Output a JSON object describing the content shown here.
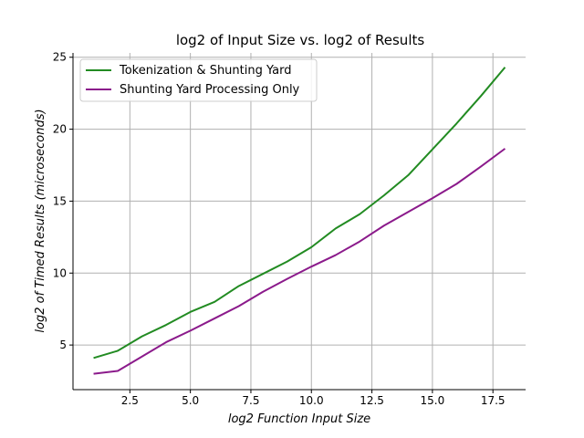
{
  "chart_data": {
    "type": "line",
    "title": "log2 of Input Size vs. log2 of Results",
    "xlabel": "log2 Function Input Size",
    "ylabel": "log2 of Timed Results (microseconds)",
    "xlim": [
      0.15,
      18.85
    ],
    "ylim": [
      1.9,
      25.3
    ],
    "xticks": [
      2.5,
      5.0,
      7.5,
      10.0,
      12.5,
      15.0,
      17.5
    ],
    "xtick_labels": [
      "2.5",
      "5.0",
      "7.5",
      "10.0",
      "12.5",
      "15.0",
      "17.5"
    ],
    "yticks": [
      5,
      10,
      15,
      20,
      25
    ],
    "ytick_labels": [
      "5",
      "10",
      "15",
      "20",
      "25"
    ],
    "grid": true,
    "legend_position": "top-left",
    "x": [
      1,
      2,
      3,
      4,
      5,
      6,
      7,
      8,
      9,
      10,
      11,
      12,
      13,
      14,
      15,
      16,
      17,
      18
    ],
    "series": [
      {
        "name": "Tokenization & Shunting Yard",
        "color": "#228b22",
        "values": [
          4.1,
          4.6,
          5.6,
          6.4,
          7.3,
          8.0,
          9.1,
          9.95,
          10.8,
          11.8,
          13.1,
          14.1,
          15.4,
          16.8,
          18.6,
          20.4,
          22.3,
          24.3
        ]
      },
      {
        "name": "Shunting Yard Processing Only",
        "color": "#8b1a8b",
        "values": [
          3.0,
          3.2,
          4.2,
          5.2,
          6.0,
          6.85,
          7.7,
          8.7,
          9.6,
          10.45,
          11.25,
          12.2,
          13.3,
          14.25,
          15.2,
          16.2,
          17.4,
          18.65
        ]
      }
    ]
  }
}
